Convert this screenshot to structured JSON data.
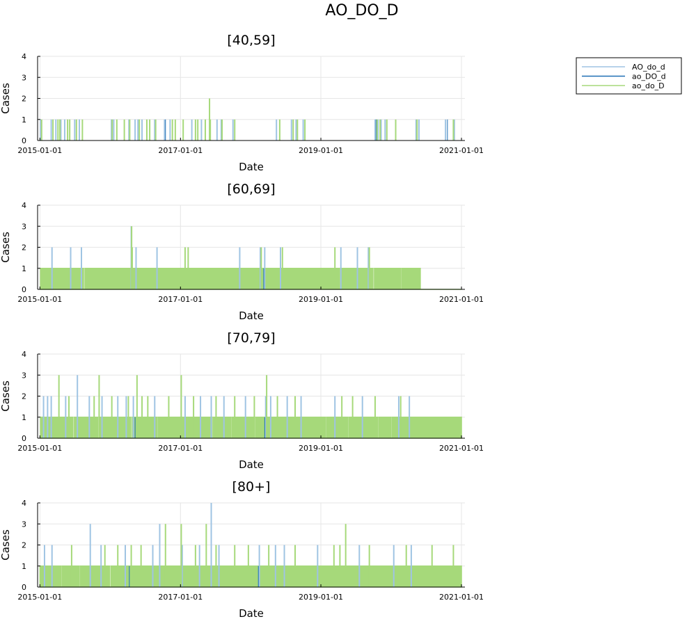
{
  "figure_title": "AO_DO_D",
  "legend": {
    "placement": "top-right, outside plot area",
    "entries": [
      {
        "label": "AO_do_d",
        "color": "#9fc4e3"
      },
      {
        "label": "ao_DO_d",
        "color": "#1f6fb4"
      },
      {
        "label": "ao_do_D",
        "color": "#a6d97a"
      }
    ]
  },
  "chart_data": [
    {
      "type": "line",
      "title": "[40,59]",
      "xlabel": "Date",
      "ylabel": "Cases",
      "xlim": [
        "2015-01-01",
        "2021-01-01"
      ],
      "ylim": [
        0,
        4
      ],
      "x_ticks": [
        "2015-01-01",
        "2017-01-01",
        "2019-01-01",
        "2021-01-01"
      ],
      "y_ticks": [
        0,
        1,
        2,
        3,
        4
      ],
      "grid": true,
      "series": [
        {
          "name": "AO_do_d",
          "points": [
            [
              "2015-01-05",
              1
            ],
            [
              "2015-03-01",
              1
            ],
            [
              "2015-03-25",
              1
            ],
            [
              "2015-04-20",
              1
            ],
            [
              "2015-05-10",
              1
            ],
            [
              "2015-07-01",
              1
            ],
            [
              "2015-07-25",
              1
            ],
            [
              "2016-01-08",
              1
            ],
            [
              "2016-01-20",
              1
            ],
            [
              "2016-04-08",
              1
            ],
            [
              "2016-05-10",
              1
            ],
            [
              "2016-05-25",
              1
            ],
            [
              "2016-06-15",
              1
            ],
            [
              "2016-08-20",
              1
            ],
            [
              "2016-10-10",
              1
            ],
            [
              "2016-11-08",
              1
            ],
            [
              "2017-03-01",
              1
            ],
            [
              "2017-04-20",
              1
            ],
            [
              "2017-07-10",
              1
            ],
            [
              "2017-08-01",
              1
            ],
            [
              "2017-10-01",
              1
            ],
            [
              "2018-05-15",
              1
            ],
            [
              "2018-08-01",
              1
            ],
            [
              "2018-08-25",
              1
            ],
            [
              "2018-10-01",
              1
            ],
            [
              "2019-10-10",
              1
            ],
            [
              "2019-10-25",
              1
            ],
            [
              "2019-11-10",
              1
            ],
            [
              "2019-12-01",
              1
            ],
            [
              "2020-05-10",
              1
            ],
            [
              "2020-05-25",
              1
            ],
            [
              "2020-10-10",
              1
            ],
            [
              "2020-11-25",
              1
            ]
          ]
        },
        {
          "name": "ao_DO_d",
          "points": [
            [
              "2016-10-15",
              1
            ],
            [
              "2019-10-15",
              1
            ],
            [
              "2020-10-20",
              1
            ]
          ]
        },
        {
          "name": "ao_do_D",
          "points": [
            [
              "2015-01-10",
              1
            ],
            [
              "2015-03-10",
              1
            ],
            [
              "2015-04-05",
              1
            ],
            [
              "2015-04-15",
              1
            ],
            [
              "2015-05-25",
              1
            ],
            [
              "2015-06-05",
              1
            ],
            [
              "2015-07-10",
              1
            ],
            [
              "2015-08-10",
              1
            ],
            [
              "2016-01-12",
              1
            ],
            [
              "2016-02-05",
              1
            ],
            [
              "2016-03-15",
              1
            ],
            [
              "2016-04-12",
              1
            ],
            [
              "2016-06-01",
              1
            ],
            [
              "2016-07-10",
              1
            ],
            [
              "2016-07-25",
              1
            ],
            [
              "2016-08-25",
              1
            ],
            [
              "2016-11-20",
              1
            ],
            [
              "2016-12-05",
              1
            ],
            [
              "2017-01-15",
              1
            ],
            [
              "2017-03-20",
              1
            ],
            [
              "2017-04-01",
              1
            ],
            [
              "2017-05-10",
              1
            ],
            [
              "2017-06-01",
              2
            ],
            [
              "2017-06-05",
              1
            ],
            [
              "2017-08-05",
              1
            ],
            [
              "2017-10-10",
              1
            ],
            [
              "2018-06-01",
              1
            ],
            [
              "2018-08-10",
              1
            ],
            [
              "2018-09-01",
              1
            ],
            [
              "2018-10-10",
              1
            ],
            [
              "2019-10-20",
              1
            ],
            [
              "2019-11-05",
              1
            ],
            [
              "2019-12-10",
              1
            ],
            [
              "2020-01-25",
              1
            ],
            [
              "2020-05-15",
              1
            ],
            [
              "2020-11-20",
              1
            ]
          ]
        }
      ]
    },
    {
      "type": "line",
      "title": "[60,69]",
      "xlabel": "Date",
      "ylabel": "Cases",
      "xlim": [
        "2015-01-01",
        "2021-01-01"
      ],
      "ylim": [
        0,
        4
      ],
      "x_ticks": [
        "2015-01-01",
        "2017-01-01",
        "2019-01-01",
        "2021-01-01"
      ],
      "y_ticks": [
        0,
        1,
        2,
        3,
        4
      ],
      "grid": true,
      "series": [
        {
          "name": "AO_do_d",
          "points": [
            [
              "2015-03-05",
              2
            ],
            [
              "2015-06-10",
              2
            ],
            [
              "2015-08-05",
              2
            ],
            [
              "2016-04-20",
              3
            ],
            [
              "2016-05-15",
              2
            ],
            [
              "2016-09-01",
              2
            ],
            [
              "2017-11-05",
              2
            ],
            [
              "2018-02-20",
              2
            ],
            [
              "2018-03-15",
              2
            ],
            [
              "2018-06-05",
              2
            ],
            [
              "2019-04-15",
              2
            ],
            [
              "2019-07-10",
              2
            ],
            [
              "2019-09-05",
              2
            ]
          ]
        },
        {
          "name": "ao_DO_d",
          "points": [
            [
              "2016-04-22",
              1
            ],
            [
              "2018-03-10",
              1
            ]
          ]
        },
        {
          "name": "ao_do_D",
          "points": [
            [
              "2016-04-22",
              3
            ],
            [
              "2016-04-25",
              2
            ],
            [
              "2017-01-25",
              2
            ],
            [
              "2017-02-10",
              2
            ],
            [
              "2018-02-25",
              2
            ],
            [
              "2018-06-15",
              2
            ],
            [
              "2019-03-15",
              2
            ],
            [
              "2019-09-10",
              2
            ]
          ]
        }
      ],
      "baseline_activity": "near-daily counts of 1 from 2015-01-01 to about 2020-06-01"
    },
    {
      "type": "line",
      "title": "[70,79]",
      "xlabel": "Date",
      "ylabel": "Cases",
      "xlim": [
        "2015-01-01",
        "2021-01-01"
      ],
      "ylim": [
        0,
        4
      ],
      "x_ticks": [
        "2015-01-01",
        "2017-01-01",
        "2019-01-01",
        "2021-01-01"
      ],
      "y_ticks": [
        0,
        1,
        2,
        3,
        4
      ],
      "grid": true,
      "series": [
        {
          "name": "AO_do_d",
          "points": [
            [
              "2015-01-20",
              2
            ],
            [
              "2015-02-10",
              2
            ],
            [
              "2015-03-01",
              2
            ],
            [
              "2015-05-15",
              2
            ],
            [
              "2015-07-15",
              3
            ],
            [
              "2015-09-15",
              2
            ],
            [
              "2015-11-20",
              2
            ],
            [
              "2016-02-10",
              2
            ],
            [
              "2016-03-25",
              2
            ],
            [
              "2016-05-01",
              2
            ],
            [
              "2016-08-20",
              2
            ],
            [
              "2017-01-25",
              2
            ],
            [
              "2017-04-15",
              2
            ],
            [
              "2017-06-10",
              2
            ],
            [
              "2017-08-15",
              2
            ],
            [
              "2017-12-05",
              2
            ],
            [
              "2018-03-20",
              2
            ],
            [
              "2018-04-15",
              2
            ],
            [
              "2018-07-10",
              2
            ],
            [
              "2018-09-20",
              2
            ],
            [
              "2019-03-15",
              2
            ],
            [
              "2019-08-05",
              2
            ],
            [
              "2020-02-10",
              2
            ],
            [
              "2020-04-05",
              2
            ]
          ]
        },
        {
          "name": "ao_DO_d",
          "points": [
            [
              "2016-05-10",
              1
            ],
            [
              "2018-03-15",
              1
            ]
          ]
        },
        {
          "name": "ao_do_D",
          "points": [
            [
              "2015-04-10",
              3
            ],
            [
              "2015-06-01",
              2
            ],
            [
              "2015-10-10",
              2
            ],
            [
              "2015-11-05",
              3
            ],
            [
              "2016-01-10",
              2
            ],
            [
              "2016-04-05",
              2
            ],
            [
              "2016-05-20",
              3
            ],
            [
              "2016-06-15",
              2
            ],
            [
              "2016-07-15",
              2
            ],
            [
              "2016-11-01",
              2
            ],
            [
              "2017-01-05",
              3
            ],
            [
              "2017-03-10",
              2
            ],
            [
              "2017-07-05",
              2
            ],
            [
              "2017-10-10",
              2
            ],
            [
              "2018-01-20",
              2
            ],
            [
              "2018-03-25",
              3
            ],
            [
              "2018-05-20",
              2
            ],
            [
              "2018-08-20",
              2
            ],
            [
              "2019-04-20",
              2
            ],
            [
              "2019-06-15",
              2
            ],
            [
              "2019-10-10",
              2
            ],
            [
              "2020-02-20",
              2
            ]
          ]
        }
      ],
      "baseline_activity": "near-daily counts of 1 from 2015-01-01 to about 2020-12-31"
    },
    {
      "type": "line",
      "title": "[80+]",
      "xlabel": "Date",
      "ylabel": "Cases",
      "xlim": [
        "2015-01-01",
        "2021-01-01"
      ],
      "ylim": [
        0,
        4
      ],
      "x_ticks": [
        "2015-01-01",
        "2017-01-01",
        "2019-01-01",
        "2021-01-01"
      ],
      "y_ticks": [
        0,
        1,
        2,
        3,
        4
      ],
      "grid": true,
      "series": [
        {
          "name": "AO_do_d",
          "points": [
            [
              "2015-01-25",
              2
            ],
            [
              "2015-03-05",
              2
            ],
            [
              "2015-09-20",
              3
            ],
            [
              "2015-11-15",
              2
            ],
            [
              "2016-03-20",
              2
            ],
            [
              "2016-08-10",
              2
            ],
            [
              "2016-09-15",
              3
            ],
            [
              "2017-01-10",
              2
            ],
            [
              "2017-04-10",
              2
            ],
            [
              "2017-06-10",
              4
            ],
            [
              "2017-07-20",
              2
            ],
            [
              "2018-02-15",
              2
            ],
            [
              "2018-05-10",
              2
            ],
            [
              "2018-06-25",
              2
            ],
            [
              "2018-12-15",
              2
            ],
            [
              "2019-07-20",
              2
            ],
            [
              "2020-01-15",
              2
            ],
            [
              "2020-04-15",
              2
            ]
          ]
        },
        {
          "name": "ao_DO_d",
          "points": [
            [
              "2016-04-10",
              1
            ],
            [
              "2018-02-10",
              1
            ]
          ]
        },
        {
          "name": "ao_do_D",
          "points": [
            [
              "2015-06-15",
              2
            ],
            [
              "2015-12-05",
              2
            ],
            [
              "2016-02-10",
              2
            ],
            [
              "2016-04-20",
              2
            ],
            [
              "2016-06-10",
              2
            ],
            [
              "2016-10-15",
              3
            ],
            [
              "2017-01-05",
              3
            ],
            [
              "2017-03-20",
              2
            ],
            [
              "2017-05-15",
              3
            ],
            [
              "2017-07-05",
              2
            ],
            [
              "2017-10-10",
              2
            ],
            [
              "2017-12-20",
              2
            ],
            [
              "2018-04-05",
              2
            ],
            [
              "2018-08-20",
              2
            ],
            [
              "2019-03-10",
              2
            ],
            [
              "2019-04-10",
              2
            ],
            [
              "2019-05-10",
              3
            ],
            [
              "2019-09-10",
              2
            ],
            [
              "2020-03-20",
              2
            ],
            [
              "2020-08-01",
              2
            ],
            [
              "2020-11-20",
              2
            ]
          ]
        }
      ],
      "baseline_activity": "near-daily counts of 1 from 2015-01-01 to about 2020-12-31"
    }
  ]
}
